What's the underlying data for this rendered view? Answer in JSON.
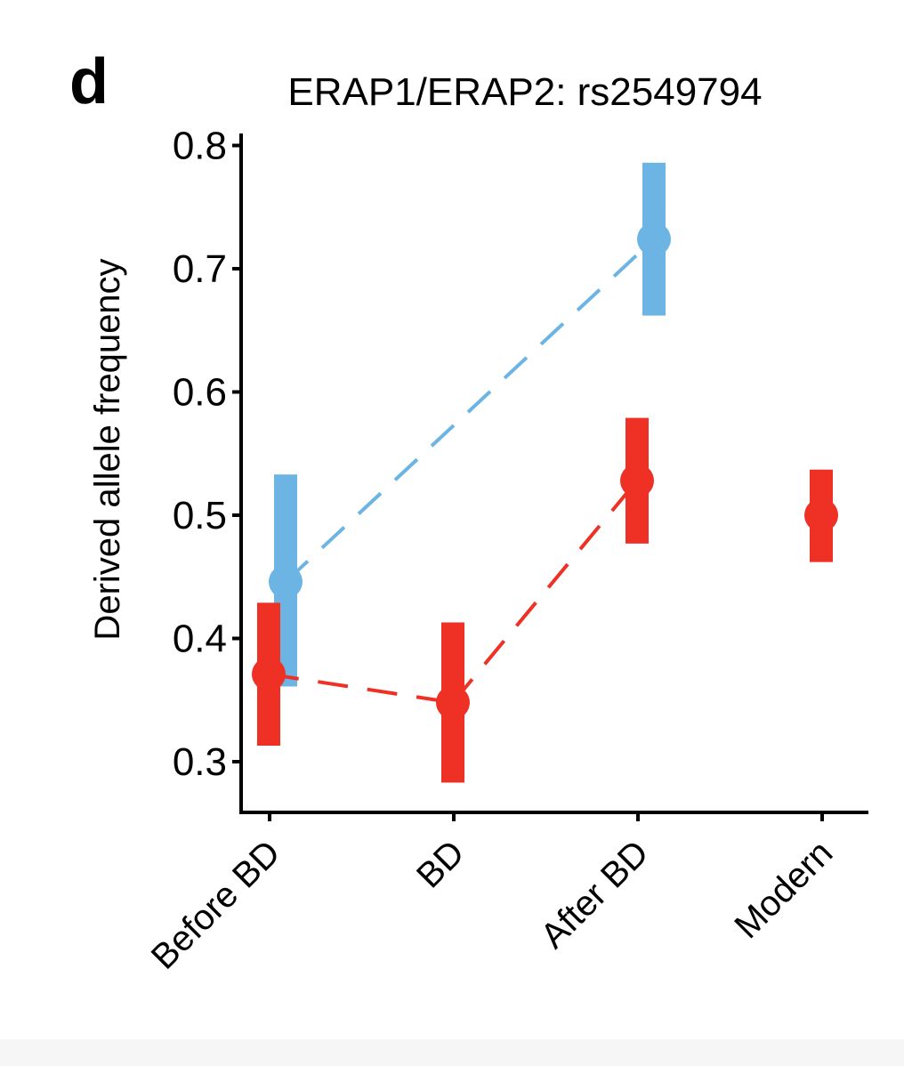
{
  "panel_label": "d",
  "chart_data": {
    "type": "scatter",
    "title": "ERAP1/ERAP2: rs2549794",
    "xlabel": "",
    "ylabel": "Derived allele frequency",
    "categories": [
      "Before BD",
      "BD",
      "After BD",
      "Modern"
    ],
    "yticks": [
      "0.3",
      "0.4",
      "0.5",
      "0.6",
      "0.7",
      "0.8"
    ],
    "ylim": [
      0.259,
      0.81
    ],
    "colors": {
      "blue": "#6CB4E4",
      "red": "#EE3124"
    },
    "series": [
      {
        "name": "blue",
        "color": "#6CB4E4",
        "points": [
          {
            "category": "Before BD",
            "value": 0.446,
            "lower": 0.361,
            "upper": 0.533
          },
          {
            "category": "After BD",
            "value": 0.724,
            "lower": 0.662,
            "upper": 0.786
          }
        ]
      },
      {
        "name": "red",
        "color": "#EE3124",
        "points": [
          {
            "category": "Before BD",
            "value": 0.371,
            "lower": 0.313,
            "upper": 0.429
          },
          {
            "category": "BD",
            "value": 0.348,
            "lower": 0.283,
            "upper": 0.413
          },
          {
            "category": "After BD",
            "value": 0.528,
            "lower": 0.477,
            "upper": 0.579
          },
          {
            "category": "Modern",
            "value": 0.5,
            "lower": 0.462,
            "upper": 0.537
          }
        ]
      }
    ]
  }
}
